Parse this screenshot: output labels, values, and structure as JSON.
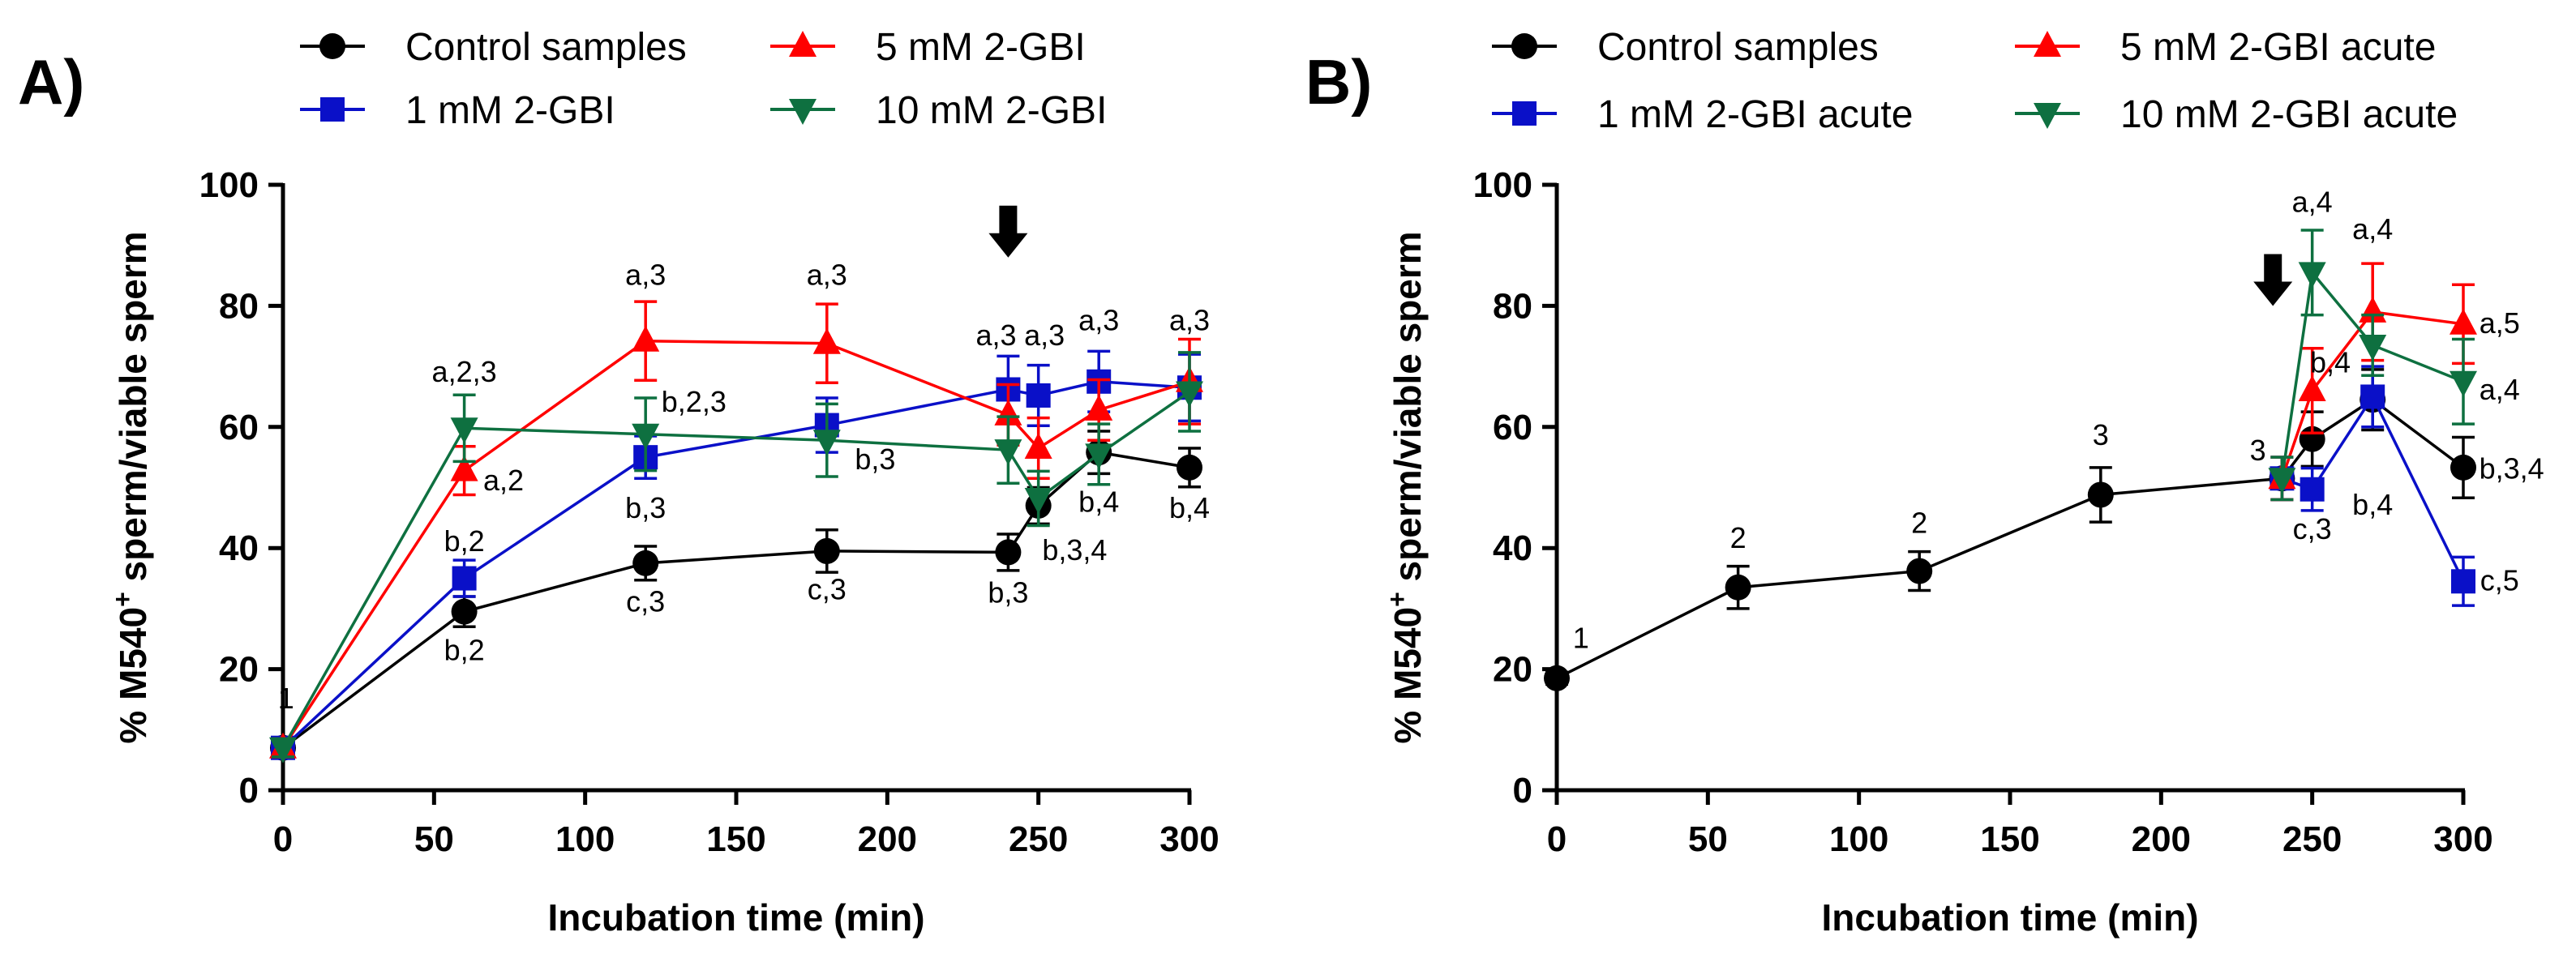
{
  "chart_data": [
    {
      "panel": "A)",
      "type": "line",
      "xlabel": "Incubation time (min)",
      "ylabel": "% M540+ sperm/viable sperm",
      "ylabel_main": "% M540",
      "ylabel_sup": "+",
      "ylabel_rest": " sperm/viable sperm",
      "xlim": [
        0,
        300
      ],
      "ylim": [
        0,
        100
      ],
      "xticks": [
        0,
        50,
        100,
        150,
        200,
        250,
        300
      ],
      "yticks": [
        0,
        20,
        40,
        60,
        80,
        100
      ],
      "arrow_at": {
        "x": 240,
        "y": 92
      },
      "series": [
        {
          "name": "Control samples",
          "color": "#000000",
          "marker": "circle",
          "x": [
            0,
            60,
            120,
            180,
            240,
            250,
            270,
            300
          ],
          "y": [
            7,
            29.5,
            37.5,
            39.5,
            39.3,
            47,
            55.8,
            53.3
          ],
          "err": [
            1.5,
            2.5,
            2.8,
            3.5,
            3,
            3,
            3.5,
            3.2
          ]
        },
        {
          "name": "1 mM 2-GBI",
          "color": "#0a10c8",
          "marker": "square",
          "x": [
            0,
            60,
            120,
            180,
            240,
            250,
            270,
            300
          ],
          "y": [
            7,
            35,
            55,
            60.3,
            66.2,
            65.2,
            67.5,
            66.5
          ],
          "err": [
            1.5,
            3,
            3.5,
            4.5,
            5.5,
            5,
            5,
            5.5
          ]
        },
        {
          "name": "5 mM 2-GBI",
          "color": "#ff0000",
          "marker": "triangle-up",
          "x": [
            0,
            60,
            120,
            180,
            240,
            250,
            270,
            300
          ],
          "y": [
            7,
            52.8,
            74.2,
            73.8,
            62,
            56.5,
            62.8,
            67.5
          ],
          "err": [
            1.5,
            4,
            6.5,
            6.5,
            5,
            5,
            5,
            7
          ]
        },
        {
          "name": "10 mM 2-GBI",
          "color": "#0e7040",
          "marker": "triangle-down",
          "x": [
            0,
            60,
            120,
            180,
            240,
            250,
            270,
            300
          ],
          "y": [
            7,
            59.8,
            58.8,
            57.8,
            56.2,
            48.2,
            55.5,
            65.8
          ],
          "err": [
            1.5,
            5.5,
            6,
            6,
            5.5,
            4.5,
            5,
            6.5
          ]
        }
      ],
      "annotations": [
        {
          "text": "1",
          "x": 1,
          "y": 13.5
        },
        {
          "text": "a,2,3",
          "x": 60,
          "y": 67.5
        },
        {
          "text": "a,2",
          "x": 73,
          "y": 49.5
        },
        {
          "text": "b,2",
          "x": 60,
          "y": 39.5
        },
        {
          "text": "b,2",
          "x": 60,
          "y": 21.5
        },
        {
          "text": "a,3",
          "x": 120,
          "y": 83.5
        },
        {
          "text": "b,2,3",
          "x": 136,
          "y": 62.5
        },
        {
          "text": "b,3",
          "x": 120,
          "y": 45
        },
        {
          "text": "c,3",
          "x": 120,
          "y": 29.5
        },
        {
          "text": "a,3",
          "x": 180,
          "y": 83.5
        },
        {
          "text": "b,3",
          "x": 196,
          "y": 53
        },
        {
          "text": "c,3",
          "x": 180,
          "y": 31.5
        },
        {
          "text": "a,3",
          "x": 236,
          "y": 73.5
        },
        {
          "text": "a,3",
          "x": 252,
          "y": 73.5
        },
        {
          "text": "b,3,4",
          "x": 262,
          "y": 38
        },
        {
          "text": "b,3",
          "x": 240,
          "y": 31
        },
        {
          "text": "a,3",
          "x": 270,
          "y": 76
        },
        {
          "text": "b,4",
          "x": 270,
          "y": 46
        },
        {
          "text": "a,3",
          "x": 300,
          "y": 76
        },
        {
          "text": "b,4",
          "x": 300,
          "y": 45
        }
      ]
    },
    {
      "panel": "B)",
      "type": "line",
      "xlabel": "Incubation time (min)",
      "ylabel": "% M540+ sperm/viable sperm",
      "ylabel_main": "% M540",
      "ylabel_sup": "+",
      "ylabel_rest": " sperm/viable sperm",
      "xlim": [
        0,
        300
      ],
      "ylim": [
        0,
        100
      ],
      "xticks": [
        0,
        50,
        100,
        150,
        200,
        250,
        300
      ],
      "yticks": [
        0,
        20,
        40,
        60,
        80,
        100
      ],
      "arrow_at": {
        "x": 237,
        "y": 84
      },
      "series": [
        {
          "name": "Control samples",
          "color": "#000000",
          "marker": "circle",
          "x": [
            0,
            60,
            120,
            180,
            240,
            250,
            270,
            300
          ],
          "y": [
            18.5,
            33.5,
            36.2,
            48.8,
            51.5,
            58,
            64.5,
            53.3
          ],
          "err": [
            1,
            3.5,
            3.2,
            4.5,
            3.5,
            4.5,
            5,
            5
          ]
        },
        {
          "name": "1 mM 2-GBI acute",
          "color": "#0a10c8",
          "marker": "square",
          "x": [
            240,
            250,
            270,
            300
          ],
          "y": [
            51.5,
            49.7,
            65,
            34.5
          ],
          "err": [
            3.5,
            3.5,
            5,
            4
          ]
        },
        {
          "name": "5 mM 2-GBI acute",
          "color": "#ff0000",
          "marker": "triangle-up",
          "x": [
            240,
            250,
            270,
            300
          ],
          "y": [
            51.5,
            66,
            79,
            77
          ],
          "err": [
            3.5,
            7,
            8,
            6.5
          ]
        },
        {
          "name": "10 mM 2-GBI acute",
          "color": "#0e7040",
          "marker": "triangle-down",
          "x": [
            240,
            250,
            270,
            300
          ],
          "y": [
            51.5,
            85.5,
            73.5,
            67.5
          ],
          "err": [
            3.5,
            7,
            5,
            7
          ]
        }
      ],
      "annotations": [
        {
          "text": "1",
          "x": 8,
          "y": 23.5
        },
        {
          "text": "2",
          "x": 60,
          "y": 40
        },
        {
          "text": "2",
          "x": 120,
          "y": 42.5
        },
        {
          "text": "3",
          "x": 180,
          "y": 57
        },
        {
          "text": "3",
          "x": 232,
          "y": 54.5
        },
        {
          "text": "a,4",
          "x": 250,
          "y": 95.5
        },
        {
          "text": "a,4",
          "x": 270,
          "y": 91
        },
        {
          "text": "b,4",
          "x": 256,
          "y": 69
        },
        {
          "text": "c,3",
          "x": 250,
          "y": 41.5
        },
        {
          "text": "b,4",
          "x": 270,
          "y": 45.5
        },
        {
          "text": "a,5",
          "x": 312,
          "y": 75.5
        },
        {
          "text": "a,4",
          "x": 312,
          "y": 64.5
        },
        {
          "text": "b,3,4",
          "x": 316,
          "y": 51.5
        },
        {
          "text": "c,5",
          "x": 312,
          "y": 33
        }
      ]
    }
  ]
}
